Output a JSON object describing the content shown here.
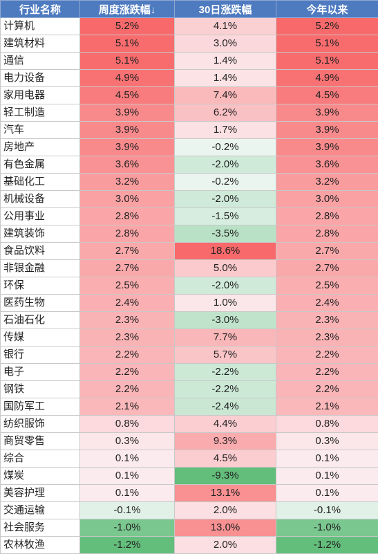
{
  "colors": {
    "header_bg": "#4e7bc0",
    "header_text": "#ffffff",
    "positive": "#f8696b",
    "negative": "#63be7b",
    "neutral": "#fcfcff"
  },
  "chart_data": {
    "type": "table",
    "columns": [
      "行业名称",
      "周度涨跌幅↓",
      "30日涨跌幅",
      "今年以来"
    ],
    "rows": [
      {
        "name": "计算机",
        "week": "5.2%",
        "d30": "4.1%",
        "ytd": "5.2%"
      },
      {
        "name": "建筑材料",
        "week": "5.1%",
        "d30": "3.0%",
        "ytd": "5.1%"
      },
      {
        "name": "通信",
        "week": "5.1%",
        "d30": "1.4%",
        "ytd": "5.1%"
      },
      {
        "name": "电力设备",
        "week": "4.9%",
        "d30": "1.4%",
        "ytd": "4.9%"
      },
      {
        "name": "家用电器",
        "week": "4.5%",
        "d30": "7.4%",
        "ytd": "4.5%"
      },
      {
        "name": "轻工制造",
        "week": "3.9%",
        "d30": "6.2%",
        "ytd": "3.9%"
      },
      {
        "name": "汽车",
        "week": "3.9%",
        "d30": "1.7%",
        "ytd": "3.9%"
      },
      {
        "name": "房地产",
        "week": "3.9%",
        "d30": "-0.2%",
        "ytd": "3.9%"
      },
      {
        "name": "有色金属",
        "week": "3.6%",
        "d30": "-2.0%",
        "ytd": "3.6%"
      },
      {
        "name": "基础化工",
        "week": "3.2%",
        "d30": "-0.2%",
        "ytd": "3.2%"
      },
      {
        "name": "机械设备",
        "week": "3.0%",
        "d30": "-2.0%",
        "ytd": "3.0%"
      },
      {
        "name": "公用事业",
        "week": "2.8%",
        "d30": "-1.5%",
        "ytd": "2.8%"
      },
      {
        "name": "建筑装饰",
        "week": "2.8%",
        "d30": "-3.5%",
        "ytd": "2.8%"
      },
      {
        "name": "食品饮料",
        "week": "2.7%",
        "d30": "18.6%",
        "ytd": "2.7%"
      },
      {
        "name": "非银金融",
        "week": "2.7%",
        "d30": "5.0%",
        "ytd": "2.7%"
      },
      {
        "name": "环保",
        "week": "2.5%",
        "d30": "-2.0%",
        "ytd": "2.5%"
      },
      {
        "name": "医药生物",
        "week": "2.4%",
        "d30": "1.0%",
        "ytd": "2.4%"
      },
      {
        "name": "石油石化",
        "week": "2.3%",
        "d30": "-3.0%",
        "ytd": "2.3%"
      },
      {
        "name": "传媒",
        "week": "2.3%",
        "d30": "7.7%",
        "ytd": "2.3%"
      },
      {
        "name": "银行",
        "week": "2.2%",
        "d30": "5.7%",
        "ytd": "2.2%"
      },
      {
        "name": "电子",
        "week": "2.2%",
        "d30": "-2.2%",
        "ytd": "2.2%"
      },
      {
        "name": "钢铁",
        "week": "2.2%",
        "d30": "-2.2%",
        "ytd": "2.2%"
      },
      {
        "name": "国防军工",
        "week": "2.1%",
        "d30": "-2.4%",
        "ytd": "2.1%"
      },
      {
        "name": "纺织服饰",
        "week": "0.8%",
        "d30": "4.4%",
        "ytd": "0.8%"
      },
      {
        "name": "商贸零售",
        "week": "0.3%",
        "d30": "9.3%",
        "ytd": "0.3%"
      },
      {
        "name": "综合",
        "week": "0.1%",
        "d30": "4.5%",
        "ytd": "0.1%"
      },
      {
        "name": "煤炭",
        "week": "0.1%",
        "d30": "-9.3%",
        "ytd": "0.1%"
      },
      {
        "name": "美容护理",
        "week": "0.1%",
        "d30": "13.1%",
        "ytd": "0.1%"
      },
      {
        "name": "交通运输",
        "week": "-0.1%",
        "d30": "2.0%",
        "ytd": "-0.1%"
      },
      {
        "name": "社会服务",
        "week": "-1.0%",
        "d30": "13.0%",
        "ytd": "-1.0%"
      },
      {
        "name": "农林牧渔",
        "week": "-1.2%",
        "d30": "2.0%",
        "ytd": "-1.2%"
      }
    ]
  }
}
